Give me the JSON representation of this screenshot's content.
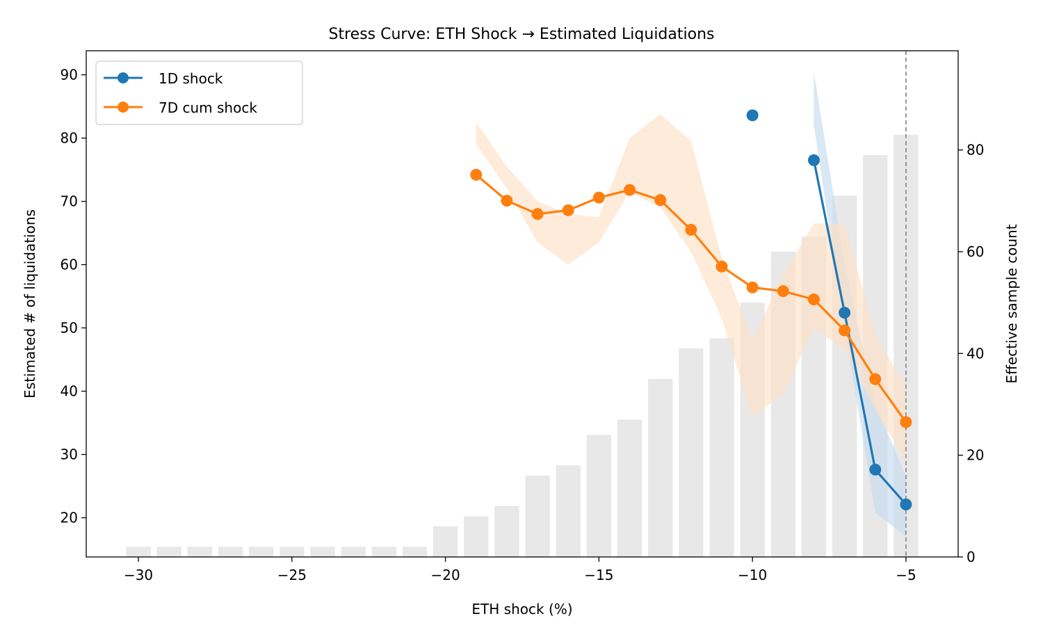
{
  "chart_data": {
    "type": "line",
    "title": "Stress Curve: ETH Shock → Estimated Liquidations",
    "xlabel": "ETH shock (%)",
    "ylabel": "Estimated # of liquidations",
    "y2label": "Effective sample count",
    "xlim": [
      -31.7,
      -3.3
    ],
    "ylim": [
      13.8,
      93.8
    ],
    "y2lim": [
      0,
      99.5
    ],
    "xticks": [
      -30,
      -25,
      -20,
      -15,
      -10,
      -5
    ],
    "xtick_labels": [
      "−30",
      "−25",
      "−20",
      "−15",
      "−10",
      "−5"
    ],
    "yticks": [
      20,
      30,
      40,
      50,
      60,
      70,
      80,
      90
    ],
    "ytick_labels": [
      "20",
      "30",
      "40",
      "50",
      "60",
      "70",
      "80",
      "90"
    ],
    "y2ticks": [
      0,
      20,
      40,
      60,
      80
    ],
    "y2tick_labels": [
      "0",
      "20",
      "40",
      "60",
      "80"
    ],
    "grid": false,
    "legend_position": "top-left",
    "reference_line_x": -5,
    "sample_counts": {
      "x": [
        -30,
        -29,
        -28,
        -27,
        -26,
        -25,
        -24,
        -23,
        -22,
        -21,
        -20,
        -19,
        -18,
        -17,
        -16,
        -15,
        -14,
        -13,
        -12,
        -11,
        -10,
        -9,
        -8,
        -7,
        -6,
        -5
      ],
      "values": [
        2,
        2,
        2,
        2,
        2,
        2,
        2,
        2,
        2,
        2,
        6,
        8,
        10,
        16,
        18,
        24,
        27,
        35,
        41,
        43,
        50,
        60,
        63,
        71,
        79,
        83
      ],
      "color": "#e8e8e8"
    },
    "series": [
      {
        "name": "1D shock",
        "color": "#1f77b4",
        "band_color": "#c6dbef",
        "points": [
          {
            "x": -10,
            "y": 83.6
          },
          {
            "x": -8,
            "y": 76.5
          },
          {
            "x": -7,
            "y": 52.4
          },
          {
            "x": -6,
            "y": 27.6
          },
          {
            "x": -5,
            "y": 22.1
          }
        ],
        "line_segments": [
          [
            -8,
            -7,
            -6,
            -5
          ]
        ],
        "band": {
          "x": [
            -8,
            -7,
            -6,
            -5
          ],
          "lower": [
            82.0,
            50.0,
            20.8,
            17.0
          ],
          "upper": [
            90.5,
            60.0,
            38.0,
            26.5
          ]
        }
      },
      {
        "name": "7D cum shock",
        "color": "#ff7f0e",
        "band_color": "#fde0c5",
        "points": [
          {
            "x": -19,
            "y": 74.2
          },
          {
            "x": -18,
            "y": 70.1
          },
          {
            "x": -17,
            "y": 68.0
          },
          {
            "x": -16,
            "y": 68.6
          },
          {
            "x": -15,
            "y": 70.6
          },
          {
            "x": -14,
            "y": 71.8
          },
          {
            "x": -13,
            "y": 70.2
          },
          {
            "x": -12,
            "y": 65.5
          },
          {
            "x": -11,
            "y": 59.7
          },
          {
            "x": -10,
            "y": 56.4
          },
          {
            "x": -9,
            "y": 55.8
          },
          {
            "x": -8,
            "y": 54.5
          },
          {
            "x": -7,
            "y": 49.6
          },
          {
            "x": -6,
            "y": 41.9
          },
          {
            "x": -5,
            "y": 35.1
          }
        ],
        "line_segments": [
          [
            -19,
            -18,
            -17,
            -16,
            -15,
            -14,
            -13,
            -12,
            -11,
            -10,
            -9,
            -8,
            -7,
            -6,
            -5
          ]
        ],
        "band": {
          "x": [
            -19,
            -18,
            -17,
            -16,
            -15,
            -14,
            -13,
            -12,
            -11,
            -10,
            -9,
            -8,
            -7,
            -6,
            -5
          ],
          "lower": [
            79.0,
            72.0,
            63.5,
            60.0,
            63.5,
            71.5,
            69.0,
            62.0,
            51.5,
            36.0,
            39.5,
            50.0,
            46.5,
            37.0,
            29.0
          ],
          "upper": [
            82.5,
            75.5,
            70.0,
            68.0,
            67.5,
            80.0,
            83.8,
            79.5,
            61.0,
            48.0,
            58.5,
            66.5,
            66.5,
            49.0,
            40.5
          ]
        }
      }
    ]
  }
}
